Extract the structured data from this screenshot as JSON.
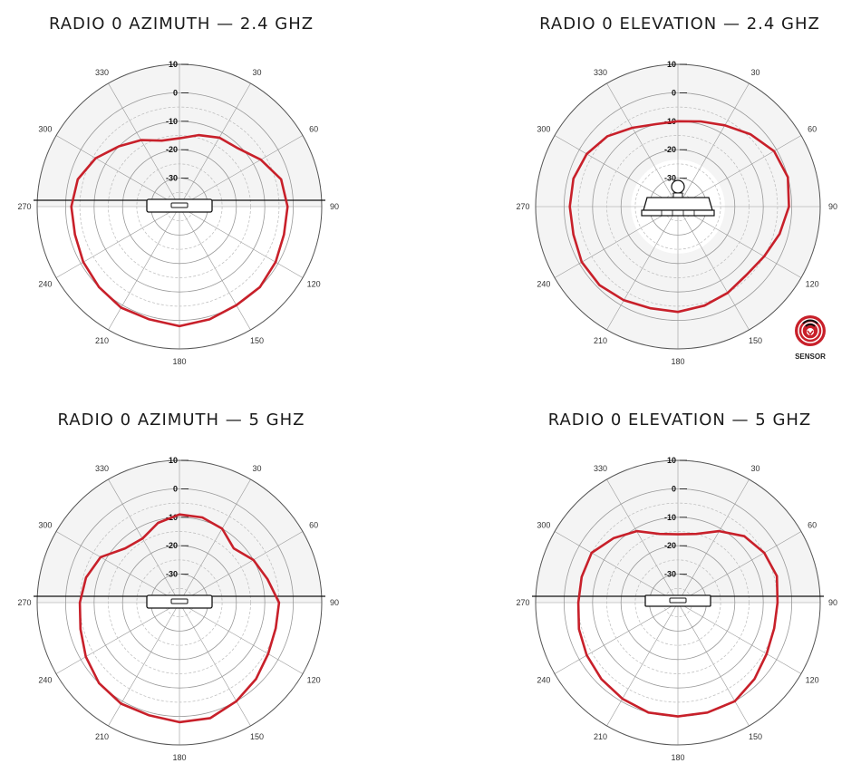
{
  "colors": {
    "pattern": "#c8202a",
    "grid": "#999999",
    "grid_dashed": "#bbbbbb",
    "shade": "#f4f4f4"
  },
  "angle_labels": [
    "0",
    "30",
    "60",
    "90",
    "120",
    "150",
    "180",
    "210",
    "240",
    "270",
    "300",
    "330"
  ],
  "ring_labels": [
    "10",
    "0",
    "-10",
    "-20",
    "-30"
  ],
  "sensor": {
    "label": "SENSOR",
    "icon": "sensor-icon"
  },
  "chart_data": [
    {
      "type": "polar",
      "title": "RADIO 0 AZIMUTH — 2.4 GHZ",
      "r_ticks": [
        10,
        0,
        -10,
        -20,
        -30
      ],
      "r_range": [
        -40,
        10
      ],
      "angle_ticks": [
        0,
        30,
        60,
        90,
        120,
        150,
        180,
        210,
        240,
        270,
        300,
        330
      ],
      "shaded_half": "top",
      "device": "azimuth",
      "series": [
        {
          "points": [
            [
              0,
              -16
            ],
            [
              15,
              -14
            ],
            [
              30,
              -12
            ],
            [
              45,
              -11
            ],
            [
              60,
              -7
            ],
            [
              75,
              -3
            ],
            [
              90,
              -2
            ],
            [
              105,
              -2
            ],
            [
              120,
              -1
            ],
            [
              135,
              0
            ],
            [
              150,
              0
            ],
            [
              165,
              1
            ],
            [
              180,
              2
            ],
            [
              195,
              1
            ],
            [
              210,
              1
            ],
            [
              225,
              0
            ],
            [
              240,
              -1
            ],
            [
              255,
              -2
            ],
            [
              270,
              -2
            ],
            [
              285,
              -3
            ],
            [
              300,
              -6
            ],
            [
              315,
              -10
            ],
            [
              330,
              -13
            ],
            [
              345,
              -16
            ],
            [
              360,
              -16
            ]
          ]
        }
      ]
    },
    {
      "type": "polar",
      "title": "RADIO 0 ELEVATION — 2.4 GHZ",
      "r_ticks": [
        10,
        0,
        -10,
        -20,
        -30
      ],
      "r_range": [
        -40,
        10
      ],
      "angle_ticks": [
        0,
        30,
        60,
        90,
        120,
        150,
        180,
        210,
        240,
        270,
        300,
        330
      ],
      "shaded_half": "none",
      "device": "elevation",
      "series": [
        {
          "points": [
            [
              0,
              -10
            ],
            [
              15,
              -9
            ],
            [
              30,
              -7
            ],
            [
              45,
              -4
            ],
            [
              60,
              -1
            ],
            [
              75,
              0
            ],
            [
              90,
              -1
            ],
            [
              105,
              -3
            ],
            [
              120,
              -5
            ],
            [
              135,
              -6
            ],
            [
              150,
              -5
            ],
            [
              165,
              -4
            ],
            [
              180,
              -3
            ],
            [
              195,
              -3
            ],
            [
              210,
              -2
            ],
            [
              225,
              -1
            ],
            [
              240,
              -1
            ],
            [
              255,
              -2
            ],
            [
              270,
              -2
            ],
            [
              285,
              -2
            ],
            [
              300,
              -3
            ],
            [
              315,
              -5
            ],
            [
              330,
              -8
            ],
            [
              345,
              -10
            ],
            [
              360,
              -10
            ]
          ]
        }
      ]
    },
    {
      "type": "polar",
      "title": "RADIO 0 AZIMUTH — 5 GHZ",
      "r_ticks": [
        10,
        0,
        -10,
        -20,
        -30
      ],
      "r_range": [
        -40,
        10
      ],
      "angle_ticks": [
        0,
        30,
        60,
        90,
        120,
        150,
        180,
        210,
        240,
        270,
        300,
        330
      ],
      "shaded_half": "top",
      "device": "azimuth",
      "series": [
        {
          "points": [
            [
              0,
              -9
            ],
            [
              15,
              -9
            ],
            [
              30,
              -10
            ],
            [
              45,
              -13
            ],
            [
              60,
              -10
            ],
            [
              75,
              -8
            ],
            [
              90,
              -5
            ],
            [
              105,
              -5
            ],
            [
              120,
              -4
            ],
            [
              135,
              -2
            ],
            [
              150,
              0
            ],
            [
              165,
              2
            ],
            [
              180,
              2
            ],
            [
              195,
              1
            ],
            [
              210,
              1
            ],
            [
              225,
              0
            ],
            [
              240,
              -2
            ],
            [
              255,
              -4
            ],
            [
              270,
              -5
            ],
            [
              285,
              -6
            ],
            [
              300,
              -8
            ],
            [
              315,
              -13
            ],
            [
              330,
              -14
            ],
            [
              345,
              -11
            ],
            [
              360,
              -9
            ]
          ]
        }
      ]
    },
    {
      "type": "polar",
      "title": "RADIO 0 ELEVATION — 5 GHZ",
      "r_ticks": [
        10,
        0,
        -10,
        -20,
        -30
      ],
      "r_range": [
        -40,
        10
      ],
      "angle_ticks": [
        0,
        30,
        60,
        90,
        120,
        150,
        180,
        210,
        240,
        270,
        300,
        330
      ],
      "shaded_half": "top",
      "device": "elevation-plate",
      "series": [
        {
          "points": [
            [
              0,
              -16
            ],
            [
              15,
              -15
            ],
            [
              30,
              -11
            ],
            [
              45,
              -7
            ],
            [
              60,
              -5
            ],
            [
              75,
              -4
            ],
            [
              90,
              -5
            ],
            [
              105,
              -5
            ],
            [
              120,
              -4
            ],
            [
              135,
              -2
            ],
            [
              150,
              0
            ],
            [
              165,
              0
            ],
            [
              180,
              0
            ],
            [
              195,
              0
            ],
            [
              210,
              -1
            ],
            [
              225,
              -2
            ],
            [
              240,
              -3
            ],
            [
              255,
              -4
            ],
            [
              270,
              -5
            ],
            [
              285,
              -5
            ],
            [
              300,
              -5
            ],
            [
              315,
              -8
            ],
            [
              330,
              -11
            ],
            [
              345,
              -15
            ],
            [
              360,
              -16
            ]
          ]
        }
      ]
    }
  ]
}
